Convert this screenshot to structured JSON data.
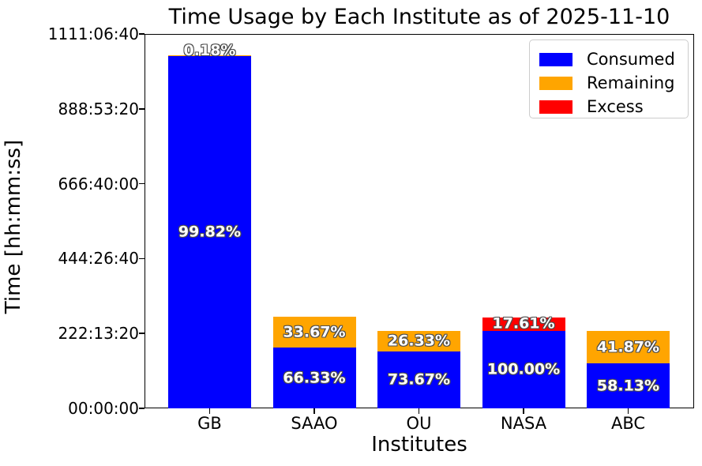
{
  "title": "Time Usage by Each Institute as of 2025-11-10",
  "xlabel": "Institutes",
  "ylabel": "Time [hh:mm:ss]",
  "colors": {
    "background": "#ffffff",
    "axis": "#000000",
    "consumed": "#0000ff",
    "remaining": "#ffa500",
    "excess": "#ff0000",
    "bar_label_fill": "#ffffff",
    "bar_label_outline": "#4d4d4d"
  },
  "legend": {
    "position": "upper right",
    "items": [
      {
        "label": "Consumed",
        "color": "#0000ff"
      },
      {
        "label": "Remaining",
        "color": "#ffa500"
      },
      {
        "label": "Excess",
        "color": "#ff0000"
      }
    ]
  },
  "chart_data": {
    "type": "bar",
    "stacked": true,
    "title": "Time Usage by Each Institute as of 2025-11-10",
    "xlabel": "Institutes",
    "ylabel": "Time [hh:mm:ss]",
    "categories": [
      "GB",
      "SAAO",
      "OU",
      "NASA",
      "ABC"
    ],
    "unit": "seconds",
    "ylim": [
      0,
      4000000
    ],
    "grid": false,
    "legend_position": "upper right",
    "yticks": [
      {
        "value": 0,
        "label": "00:00:00"
      },
      {
        "value": 800000,
        "label": "222:13:20"
      },
      {
        "value": 1600000,
        "label": "444:26:40"
      },
      {
        "value": 2400000,
        "label": "666:40:00"
      },
      {
        "value": 3200000,
        "label": "888:53:20"
      },
      {
        "value": 4000000,
        "label": "1111:06:40"
      }
    ],
    "series": [
      {
        "name": "Consumed",
        "color": "#0000ff",
        "values": [
          3764000,
          649400,
          609300,
          827000,
          480700
        ],
        "labels": [
          "99.82%",
          "66.33%",
          "73.67%",
          "100.00%",
          "58.13%"
        ]
      },
      {
        "name": "Remaining",
        "color": "#ffa500",
        "values": [
          6800,
          329600,
          217700,
          0,
          346300
        ],
        "labels": [
          "0.18%",
          "33.67%",
          "26.33%",
          "",
          "41.87%"
        ]
      },
      {
        "name": "Excess",
        "color": "#ff0000",
        "values": [
          0,
          0,
          0,
          145600,
          0
        ],
        "labels": [
          "",
          "",
          "",
          "17.61%",
          ""
        ]
      }
    ]
  }
}
